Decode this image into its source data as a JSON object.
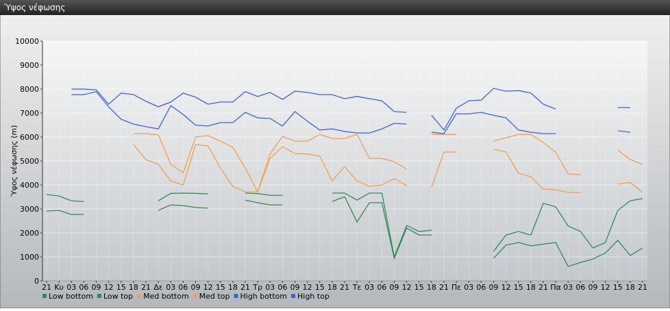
{
  "chart_data": {
    "type": "line",
    "title": "Ύψος νέφωσης",
    "y_label": "Ύψος νέφωσης (m)",
    "categories": [
      "21",
      "Κυ",
      "03",
      "06",
      "09",
      "12",
      "15",
      "18",
      "21",
      "Δε",
      "03",
      "06",
      "09",
      "12",
      "15",
      "18",
      "21",
      "Τρ",
      "03",
      "06",
      "09",
      "12",
      "15",
      "18",
      "21",
      "Τε",
      "03",
      "06",
      "09",
      "12",
      "15",
      "18",
      "21",
      "Πε",
      "03",
      "06",
      "09",
      "12",
      "15",
      "18",
      "21",
      "Πα",
      "03",
      "06",
      "09",
      "12",
      "15",
      "18",
      "21"
    ],
    "series": [
      {
        "name": "Low bottom",
        "color": "#2e8b57",
        "values": [
          2910,
          2940,
          2770,
          2770,
          null,
          null,
          null,
          null,
          null,
          2940,
          3170,
          3140,
          3060,
          3030,
          null,
          null,
          3370,
          3260,
          3170,
          3170,
          null,
          null,
          null,
          3310,
          3510,
          2460,
          3260,
          3260,
          940,
          2200,
          1910,
          1910,
          null,
          null,
          null,
          null,
          940,
          1490,
          1600,
          1460,
          1530,
          1600,
          600,
          770,
          910,
          1160,
          1690,
          1060,
          1370
        ]
      },
      {
        "name": "Low top",
        "color": "#2e8b57",
        "values": [
          3600,
          3540,
          3340,
          3310,
          null,
          null,
          null,
          null,
          null,
          3340,
          3650,
          3660,
          3650,
          3630,
          null,
          null,
          3660,
          3640,
          3570,
          3570,
          null,
          null,
          null,
          3660,
          3660,
          3370,
          3660,
          3660,
          1000,
          2310,
          2060,
          2110,
          null,
          null,
          null,
          null,
          1230,
          1910,
          2060,
          1910,
          3230,
          3090,
          2290,
          2060,
          1370,
          1600,
          2940,
          3340,
          3430
        ]
      },
      {
        "name": "Med bottom",
        "color": "#f0a050",
        "values": [
          null,
          null,
          null,
          null,
          null,
          null,
          null,
          5690,
          5060,
          4860,
          4170,
          4000,
          5690,
          5630,
          4710,
          3940,
          3710,
          3710,
          5110,
          5600,
          5310,
          5290,
          5200,
          4170,
          4770,
          4170,
          3940,
          4000,
          4260,
          3970,
          null,
          3900,
          5370,
          5370,
          null,
          null,
          5490,
          5370,
          4490,
          4340,
          3830,
          3800,
          3690,
          3690,
          null,
          null,
          4030,
          4110,
          3690
        ]
      },
      {
        "name": "Med top",
        "color": "#f0a050",
        "values": [
          null,
          null,
          null,
          null,
          null,
          null,
          null,
          6140,
          6140,
          6090,
          4860,
          4510,
          6000,
          6060,
          5830,
          5570,
          4710,
          3710,
          5290,
          6030,
          5830,
          5830,
          6110,
          5940,
          5940,
          6110,
          5110,
          5110,
          4970,
          4660,
          null,
          6110,
          6110,
          6110,
          null,
          null,
          5830,
          5970,
          6110,
          6110,
          5770,
          5370,
          4460,
          4430,
          null,
          null,
          5460,
          5060,
          4860
        ]
      },
      {
        "name": "High bottom",
        "color": "#3a64d8",
        "values": [
          null,
          null,
          7770,
          7770,
          7890,
          7260,
          6740,
          6540,
          6430,
          6340,
          7310,
          6940,
          6490,
          6460,
          6600,
          6600,
          7030,
          6800,
          6770,
          6460,
          7060,
          6660,
          6290,
          6340,
          6230,
          6170,
          6170,
          6340,
          6570,
          6540,
          null,
          6200,
          6140,
          6970,
          6970,
          7030,
          6910,
          6800,
          6290,
          6200,
          6140,
          6140,
          null,
          null,
          null,
          null,
          6260,
          6200,
          null
        ]
      },
      {
        "name": "High top",
        "color": "#3a64d8",
        "values": [
          null,
          null,
          8000,
          8000,
          7970,
          7370,
          7830,
          7770,
          7490,
          7260,
          7460,
          7830,
          7660,
          7370,
          7460,
          7460,
          7890,
          7690,
          7860,
          7570,
          7910,
          7860,
          7770,
          7770,
          7600,
          7690,
          7600,
          7510,
          7060,
          7030,
          null,
          6910,
          6290,
          7200,
          7510,
          7540,
          8030,
          7910,
          7940,
          7830,
          7370,
          7170,
          null,
          null,
          null,
          null,
          7230,
          7230,
          null
        ]
      }
    ],
    "ylim": [
      0,
      10000
    ],
    "yticks": [
      0,
      1000,
      2000,
      3000,
      4000,
      5000,
      6000,
      7000,
      8000,
      9000,
      10000
    ],
    "grid": true
  }
}
